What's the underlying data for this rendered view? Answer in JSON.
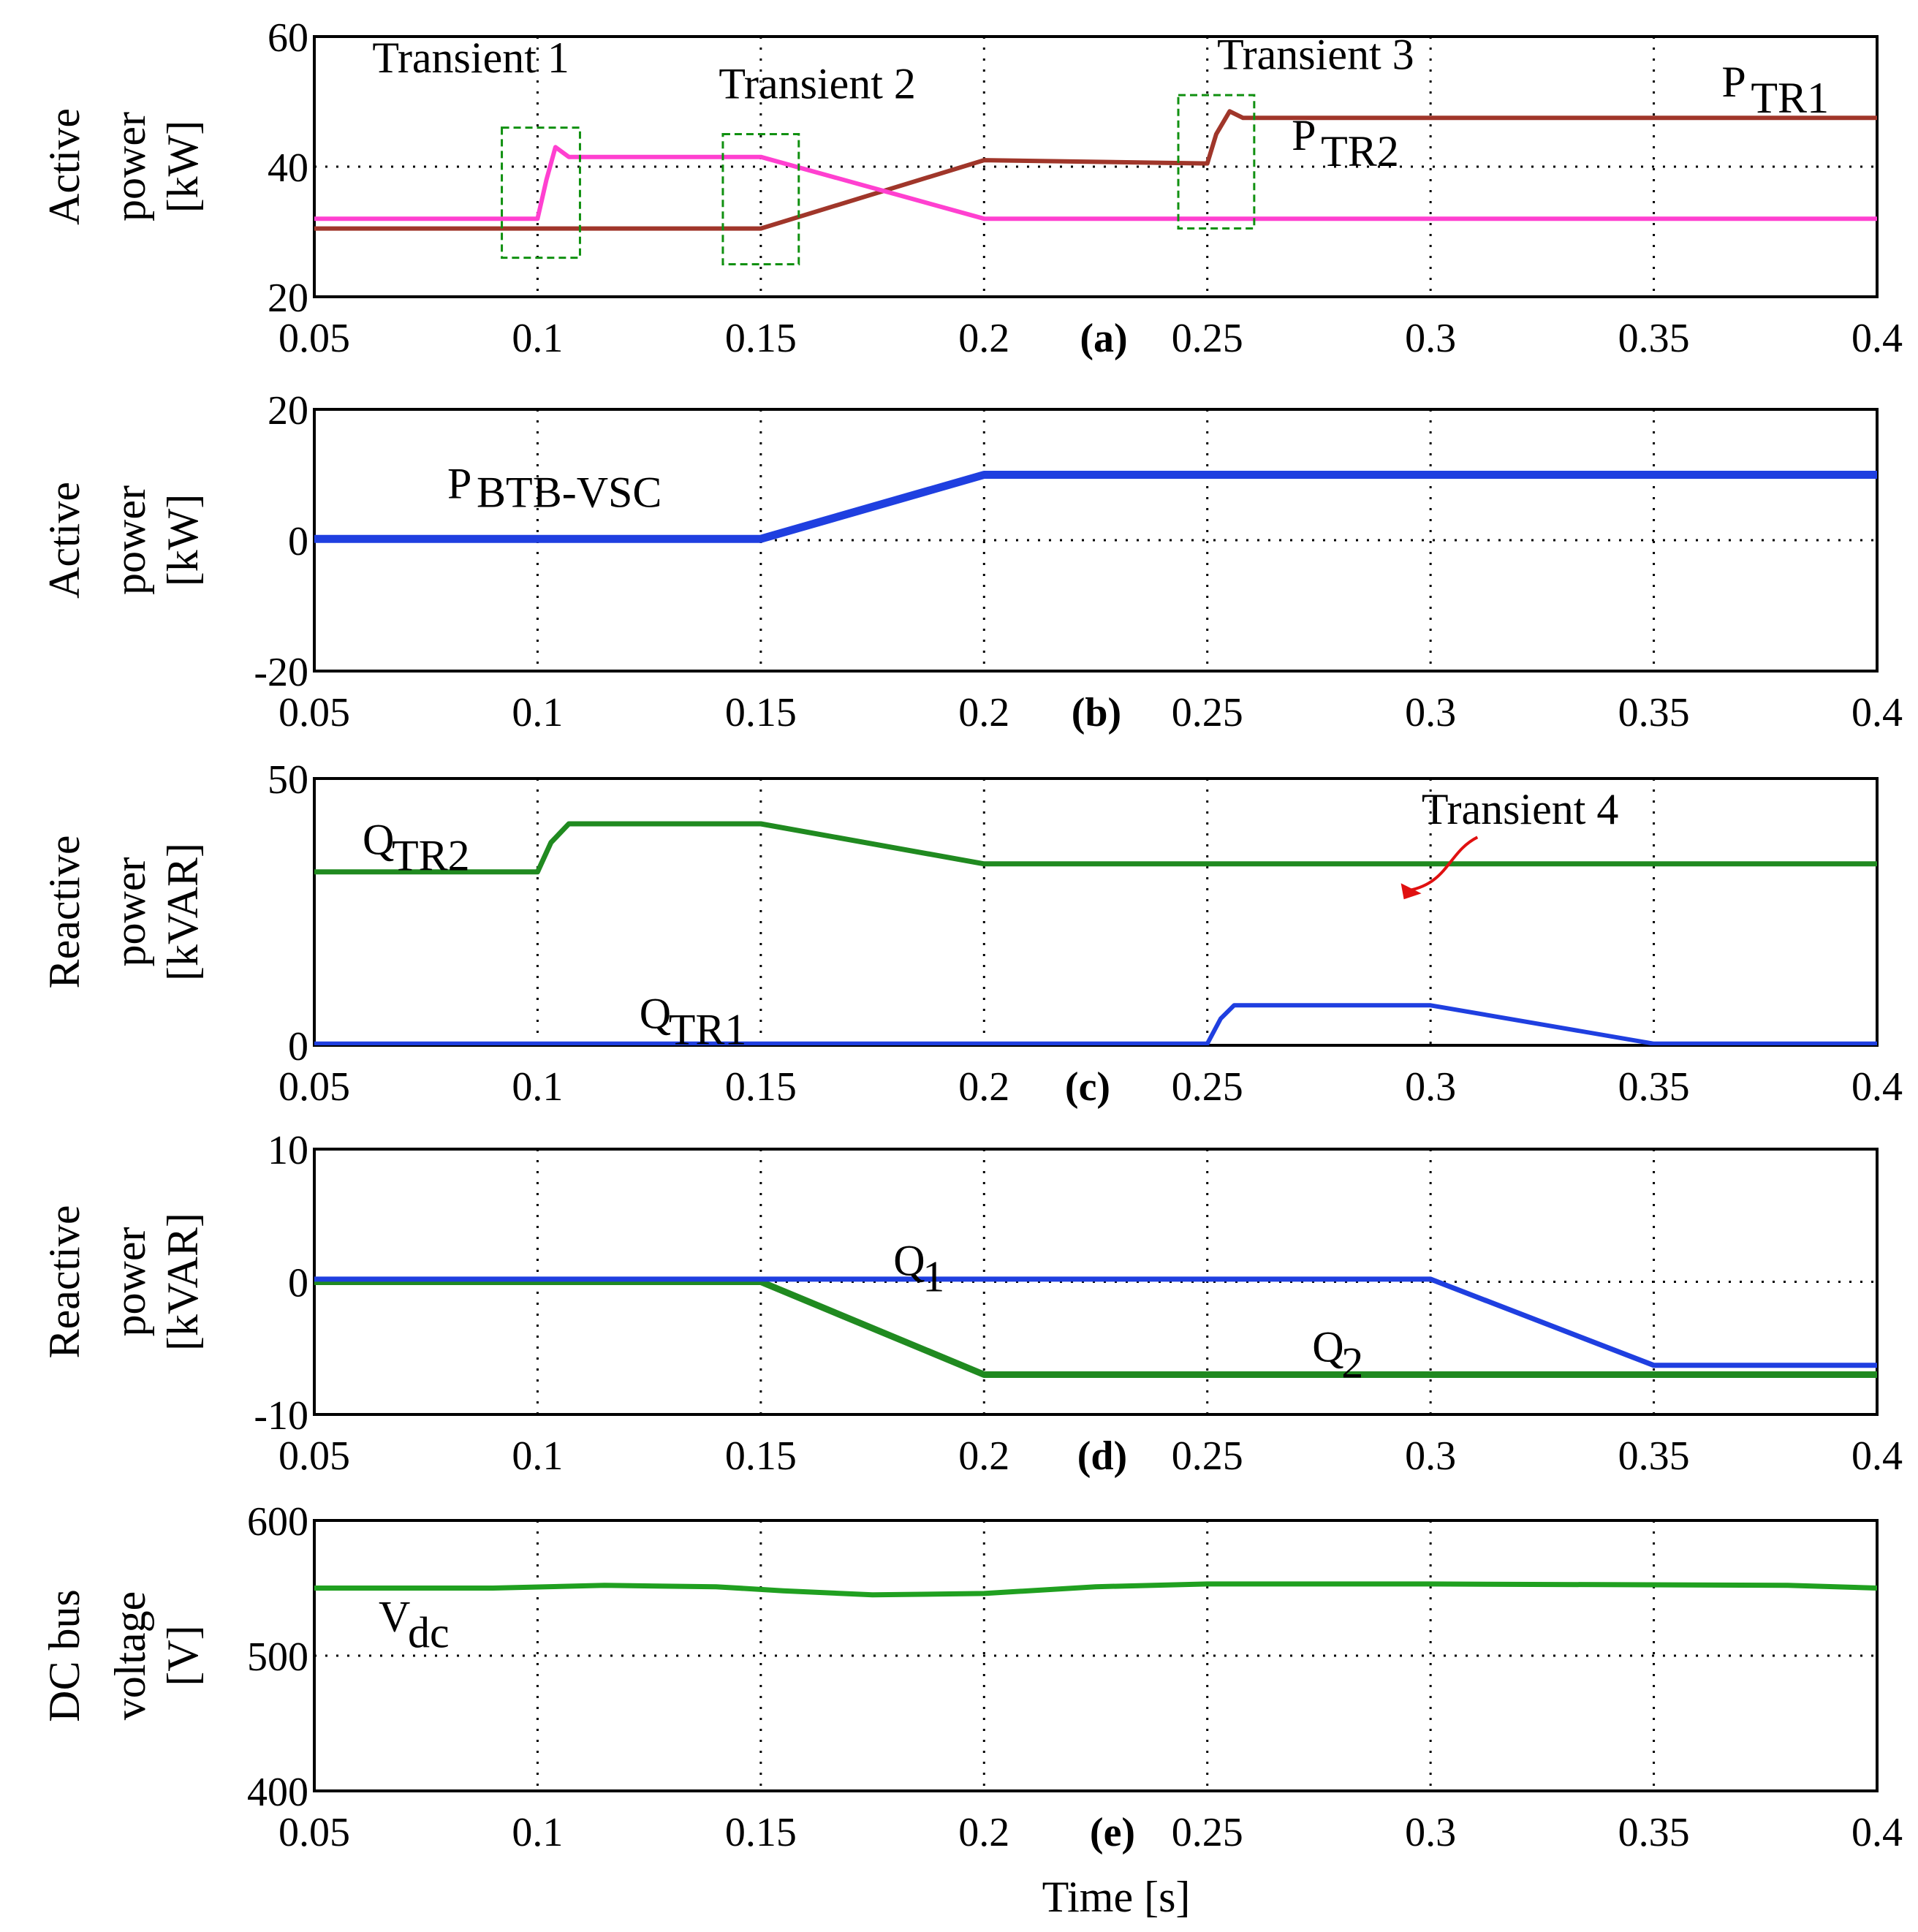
{
  "chart_data": [
    {
      "type": "line",
      "panel": "a",
      "panel_label": "(a)",
      "ylabel_lines": [
        "Active",
        "power",
        "[kW]"
      ],
      "xlim": [
        0.05,
        0.4
      ],
      "ylim": [
        20,
        60
      ],
      "x_ticks": [
        "0.05",
        "0.1",
        "0.15",
        "0.2",
        "0.25",
        "0.3",
        "0.35",
        "0.4"
      ],
      "y_ticks": [
        {
          "value": 60,
          "label": "60"
        },
        {
          "value": 40,
          "label": "40"
        },
        {
          "value": 20,
          "label": "20"
        }
      ],
      "grid": true,
      "series": [
        {
          "name": "PTR1",
          "label_main": "P",
          "label_sub": "TR1",
          "color": "#a0362a",
          "stroke": 6,
          "x": [
            0.05,
            0.15,
            0.2,
            0.25,
            0.252,
            0.255,
            0.258,
            0.4
          ],
          "y": [
            30.5,
            30.5,
            41,
            40.5,
            45,
            48.5,
            47.5,
            47.5
          ]
        },
        {
          "name": "PTR2",
          "label_main": "P",
          "label_sub": "TR2",
          "color": "#ff40d0",
          "stroke": 6,
          "x": [
            0.05,
            0.1,
            0.102,
            0.104,
            0.107,
            0.15,
            0.2,
            0.4
          ],
          "y": [
            32,
            32,
            38,
            43,
            41.5,
            41.5,
            32,
            32
          ]
        }
      ],
      "annotations": [
        {
          "text": "Transient 1",
          "box_x": [
            0.092,
            0.1095
          ],
          "box_y": [
            26,
            46
          ]
        },
        {
          "text": "Transient 2",
          "box_x": [
            0.1415,
            0.1585
          ],
          "box_y": [
            25,
            45
          ]
        },
        {
          "text": "Transient 3",
          "box_x": [
            0.2435,
            0.2605
          ],
          "box_y": [
            30.5,
            51
          ]
        }
      ],
      "box_color": "#109010"
    },
    {
      "type": "line",
      "panel": "b",
      "panel_label": "(b)",
      "ylabel_lines": [
        "Active",
        "power",
        "[kW]"
      ],
      "xlim": [
        0.05,
        0.4
      ],
      "ylim": [
        -20,
        20
      ],
      "x_ticks": [
        "0.05",
        "0.1",
        "0.15",
        "0.2",
        "0.25",
        "0.3",
        "0.35",
        "0.4"
      ],
      "y_ticks": [
        {
          "value": 20,
          "label": "20"
        },
        {
          "value": 0,
          "label": "0"
        },
        {
          "value": -20,
          "label": "-20"
        }
      ],
      "grid": true,
      "series": [
        {
          "name": "PBTB-VSC",
          "label_main": "P",
          "label_sub": "BTB-VSC",
          "color": "#1f3fe0",
          "stroke": 11,
          "x": [
            0.05,
            0.15,
            0.2,
            0.4
          ],
          "y": [
            0.2,
            0.2,
            10,
            10
          ]
        }
      ],
      "annotations": []
    },
    {
      "type": "line",
      "panel": "c",
      "panel_label": "(c)",
      "ylabel_lines": [
        "Reactive",
        "power",
        "[kVAR]"
      ],
      "xlim": [
        0.05,
        0.4
      ],
      "ylim": [
        0,
        50
      ],
      "x_ticks": [
        "0.05",
        "0.1",
        "0.15",
        "0.2",
        "0.25",
        "0.3",
        "0.35",
        "0.4"
      ],
      "y_ticks": [
        {
          "value": 50,
          "label": "50"
        },
        {
          "value": 0,
          "label": "0"
        }
      ],
      "grid": true,
      "series": [
        {
          "name": "QTR2",
          "label_main": "Q",
          "label_sub": "TR2",
          "color": "#208a20",
          "stroke": 7,
          "x": [
            0.05,
            0.1,
            0.103,
            0.107,
            0.15,
            0.2,
            0.4
          ],
          "y": [
            32.5,
            32.5,
            38,
            41.5,
            41.5,
            34,
            34
          ]
        },
        {
          "name": "QTR1",
          "label_main": "Q",
          "label_sub": "TR1",
          "color": "#1f3fe0",
          "stroke": 6,
          "x": [
            0.05,
            0.25,
            0.253,
            0.256,
            0.3,
            0.35,
            0.4
          ],
          "y": [
            0.3,
            0.3,
            5,
            7.5,
            7.5,
            0.3,
            0.3
          ]
        }
      ],
      "annotations": [
        {
          "text": "Transient 4",
          "arrow_from": [
            0.3105,
            39
          ],
          "arrow_to": [
            0.295,
            29
          ]
        }
      ],
      "arrow_color": "#e01010"
    },
    {
      "type": "line",
      "panel": "d",
      "panel_label": "(d)",
      "ylabel_lines": [
        "Reactive",
        "power",
        "[kVAR]"
      ],
      "xlim": [
        0.05,
        0.4
      ],
      "ylim": [
        -10,
        10
      ],
      "x_ticks": [
        "0.05",
        "0.1",
        "0.15",
        "0.2",
        "0.25",
        "0.3",
        "0.35",
        "0.4"
      ],
      "y_ticks": [
        {
          "value": 10,
          "label": "10"
        },
        {
          "value": 0,
          "label": "0"
        },
        {
          "value": -10,
          "label": "-10"
        }
      ],
      "grid": true,
      "series": [
        {
          "name": "Q2",
          "label_main": "Q",
          "label_sub": "2",
          "color": "#208a20",
          "stroke": 9,
          "x": [
            0.05,
            0.15,
            0.2,
            0.4
          ],
          "y": [
            0,
            0,
            -7,
            -7
          ]
        },
        {
          "name": "Q1",
          "label_main": "Q",
          "label_sub": "1",
          "color": "#1f3fe0",
          "stroke": 7,
          "x": [
            0.05,
            0.3,
            0.35,
            0.4
          ],
          "y": [
            0.2,
            0.2,
            -6.3,
            -6.3
          ]
        }
      ],
      "annotations": []
    },
    {
      "type": "line",
      "panel": "e",
      "panel_label": "(e)",
      "ylabel_lines": [
        "DC bus",
        "voltage",
        "[V]"
      ],
      "xlabel": "Time [s]",
      "xlim": [
        0.05,
        0.4
      ],
      "ylim": [
        400,
        600
      ],
      "x_ticks": [
        "0.05",
        "0.1",
        "0.15",
        "0.2",
        "0.25",
        "0.3",
        "0.35",
        "0.4"
      ],
      "y_ticks": [
        {
          "value": 600,
          "label": "600"
        },
        {
          "value": 500,
          "label": "500"
        },
        {
          "value": 400,
          "label": "400"
        }
      ],
      "grid": true,
      "series": [
        {
          "name": "Vdc",
          "label_main": "V",
          "label_sub": "dc",
          "color": "#20a020",
          "stroke": 7,
          "x": [
            0.05,
            0.09,
            0.115,
            0.14,
            0.155,
            0.175,
            0.2,
            0.225,
            0.25,
            0.3,
            0.38,
            0.4
          ],
          "y": [
            550,
            550,
            552,
            551,
            548,
            545,
            546,
            551,
            553,
            553,
            552,
            550
          ]
        }
      ],
      "annotations": []
    }
  ]
}
